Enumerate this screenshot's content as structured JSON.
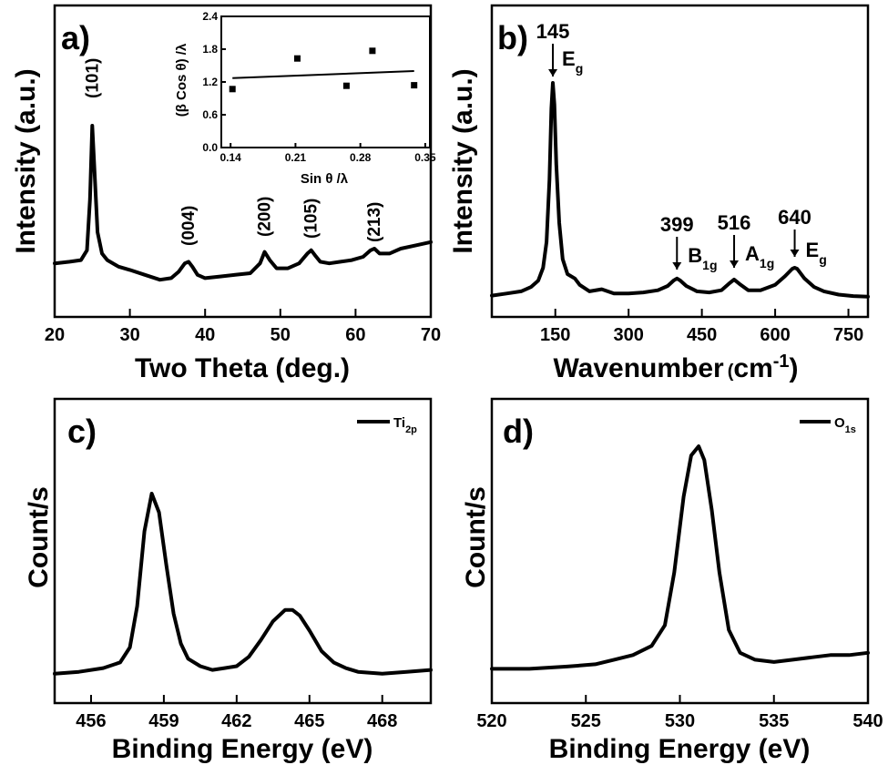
{
  "chart_data": [
    {
      "id": "a",
      "type": "line",
      "panel_label": "a)",
      "xlabel": "Two Theta (deg.)",
      "ylabel": "Intensity (a.u.)",
      "xlim": [
        20,
        70
      ],
      "xticks": [
        "20",
        "30",
        "40",
        "50",
        "60",
        "70"
      ],
      "series": [
        {
          "x": [
            20,
            22,
            23.5,
            24.3,
            24.7,
            25.0,
            25.3,
            25.7,
            26.3,
            27,
            28.5,
            30,
            32,
            34,
            35.5,
            36.5,
            37.3,
            37.8,
            38.3,
            39,
            40,
            42,
            44,
            46,
            47.3,
            47.9,
            48.6,
            49.5,
            51,
            52.5,
            53.6,
            54.1,
            54.6,
            55.3,
            56.5,
            58,
            59.5,
            61,
            62,
            62.5,
            63.2,
            64.5,
            66,
            68,
            70
          ],
          "y": [
            16,
            17,
            18,
            24,
            55,
            100,
            72,
            35,
            22,
            18,
            14,
            12,
            9,
            6,
            7,
            11,
            16,
            17,
            14,
            9,
            7,
            8,
            9,
            10,
            16,
            23,
            18,
            13,
            13,
            16,
            22,
            24,
            21,
            17,
            16,
            17,
            18,
            20,
            24,
            25,
            22,
            22,
            25,
            27,
            29
          ]
        }
      ],
      "peak_labels": [
        {
          "text": "(101)",
          "x": 25.0
        },
        {
          "text": "(004)",
          "x": 37.8
        },
        {
          "text": "(200)",
          "x": 47.9
        },
        {
          "text": "(105)",
          "x": 54.1
        },
        {
          "text": "(213)",
          "x": 62.5
        }
      ],
      "inset": {
        "type": "scatter",
        "xlabel": "Sin θ /λ",
        "ylabel": "(β Cos θ) /λ",
        "xlim": [
          0.13,
          0.355
        ],
        "ylim": [
          0.0,
          2.4
        ],
        "xticks": [
          "0.14",
          "0.21",
          "0.28",
          "0.35"
        ],
        "yticks": [
          "0.0",
          "0.6",
          "1.2",
          "1.8",
          "2.4"
        ],
        "points": [
          {
            "x": 0.142,
            "y": 1.07
          },
          {
            "x": 0.212,
            "y": 1.63
          },
          {
            "x": 0.265,
            "y": 1.13
          },
          {
            "x": 0.293,
            "y": 1.77
          },
          {
            "x": 0.338,
            "y": 1.14
          }
        ],
        "fit_line": [
          {
            "x": 0.142,
            "y": 1.27
          },
          {
            "x": 0.338,
            "y": 1.4
          }
        ]
      }
    },
    {
      "id": "b",
      "type": "line",
      "panel_label": "b)",
      "xlabel": "Wavenumber (cm-1)",
      "ylabel": "Intensity (a.u.)",
      "xlim": [
        20,
        790
      ],
      "xticks": [
        "150",
        "300",
        "450",
        "600",
        "750"
      ],
      "series": [
        {
          "x": [
            20,
            50,
            80,
            100,
            115,
            125,
            132,
            138,
            142,
            145,
            148,
            152,
            158,
            165,
            175,
            190,
            200,
            220,
            245,
            270,
            300,
            330,
            360,
            380,
            392,
            399,
            406,
            418,
            440,
            465,
            490,
            505,
            516,
            527,
            545,
            570,
            600,
            620,
            635,
            640,
            645,
            660,
            680,
            700,
            730,
            760,
            790
          ],
          "y": [
            1,
            2,
            3,
            5,
            8,
            14,
            26,
            55,
            88,
            100,
            90,
            62,
            35,
            18,
            11,
            9,
            6,
            3,
            4,
            2,
            2,
            2.5,
            3.5,
            5.5,
            8,
            9,
            8,
            5.5,
            3,
            2.5,
            3.5,
            6.5,
            8.5,
            6.5,
            3.5,
            3.5,
            6,
            10,
            13.5,
            14,
            13.5,
            9,
            5,
            3,
            1.5,
            0.8,
            0.5
          ]
        }
      ],
      "peak_labels": [
        {
          "value": "145",
          "mode": "E",
          "sub": "g",
          "x": 145
        },
        {
          "value": "399",
          "mode": "B",
          "sub": "1g",
          "x": 399
        },
        {
          "value": "516",
          "mode": "A",
          "sub": "1g",
          "x": 516
        },
        {
          "value": "640",
          "mode": "E",
          "sub": "g",
          "x": 640
        }
      ]
    },
    {
      "id": "c",
      "type": "line",
      "panel_label": "c)",
      "xlabel": "Binding Energy (eV)",
      "ylabel": "Count/s",
      "xlim": [
        454.5,
        470
      ],
      "xticks": [
        "456",
        "459",
        "462",
        "465",
        "468"
      ],
      "legend": {
        "base": "Ti",
        "sub": "2p"
      },
      "series": [
        {
          "x": [
            454.5,
            455.5,
            456.5,
            457.2,
            457.6,
            457.9,
            458.2,
            458.5,
            458.8,
            459.1,
            459.4,
            459.7,
            460.0,
            460.5,
            461,
            461.5,
            462,
            462.5,
            463.0,
            463.5,
            464.0,
            464.3,
            464.6,
            465.0,
            465.5,
            466,
            466.5,
            467,
            468,
            469,
            470
          ],
          "y": [
            4,
            5,
            7,
            10,
            18,
            40,
            80,
            100,
            90,
            62,
            36,
            20,
            12,
            8,
            6,
            7,
            8,
            13,
            22,
            32,
            38,
            38,
            35,
            27,
            16,
            10,
            7,
            5,
            4,
            5,
            6
          ]
        }
      ]
    },
    {
      "id": "d",
      "type": "line",
      "panel_label": "d)",
      "xlabel": "Binding Energy (eV)",
      "ylabel": "Count/s",
      "xlim": [
        520,
        540
      ],
      "xticks": [
        "520",
        "525",
        "530",
        "535",
        "540"
      ],
      "legend": {
        "base": "O",
        "sub": "1s"
      },
      "series": [
        {
          "x": [
            520,
            522,
            524,
            525.5,
            526.5,
            527.5,
            528.5,
            529.2,
            529.7,
            530.2,
            530.6,
            531.0,
            531.3,
            531.7,
            532.1,
            532.6,
            533.2,
            534,
            535,
            536,
            537,
            538,
            539,
            540
          ],
          "y": [
            3,
            3,
            4,
            5,
            7,
            9,
            13,
            22,
            45,
            78,
            96,
            100,
            94,
            72,
            45,
            20,
            10,
            7,
            6,
            7,
            8,
            9,
            9,
            10
          ]
        }
      ]
    }
  ]
}
